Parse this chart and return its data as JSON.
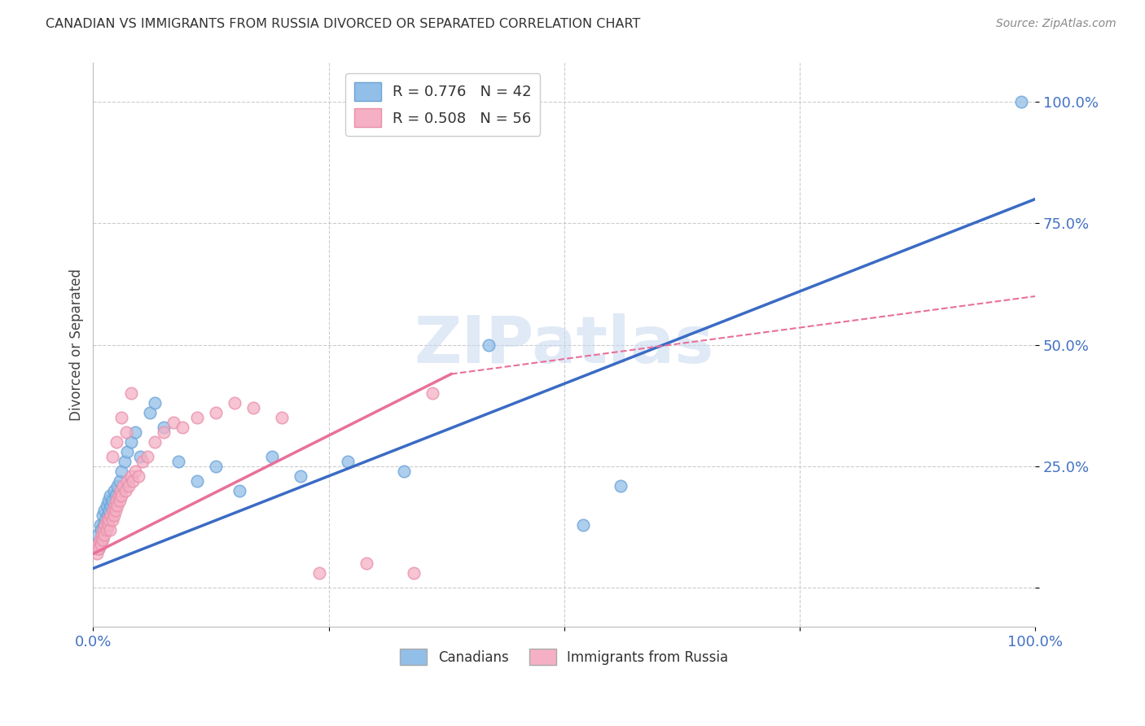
{
  "title": "CANADIAN VS IMMIGRANTS FROM RUSSIA DIVORCED OR SEPARATED CORRELATION CHART",
  "source": "Source: ZipAtlas.com",
  "ylabel": "Divorced or Separated",
  "xlim": [
    0,
    1
  ],
  "ylim": [
    -0.08,
    1.08
  ],
  "x_ticks": [
    0,
    0.25,
    0.5,
    0.75,
    1.0
  ],
  "x_tick_labels": [
    "0.0%",
    "",
    "",
    "",
    "100.0%"
  ],
  "y_ticks": [
    0.0,
    0.25,
    0.5,
    0.75,
    1.0
  ],
  "y_tick_labels": [
    "",
    "25.0%",
    "50.0%",
    "75.0%",
    "100.0%"
  ],
  "canadian_color": "#92BFE8",
  "canadian_edge_color": "#6CA3D8",
  "russian_color": "#F5B0C5",
  "russian_edge_color": "#E890AA",
  "r_canadian": 0.776,
  "n_canadian": 42,
  "r_russian": 0.508,
  "n_russian": 56,
  "watermark": "ZIPatlas",
  "background_color": "#ffffff",
  "grid_color": "#cccccc",
  "canadian_line": {
    "x0": 0.0,
    "y0": 0.04,
    "x1": 1.0,
    "y1": 0.8
  },
  "russian_line_solid": {
    "x0": 0.0,
    "y0": 0.07,
    "x1": 0.38,
    "y1": 0.44
  },
  "russian_line_dash": {
    "x0": 0.38,
    "y0": 0.44,
    "x1": 1.0,
    "y1": 0.6
  },
  "canadian_scatter_x": [
    0.003,
    0.005,
    0.006,
    0.007,
    0.008,
    0.009,
    0.01,
    0.011,
    0.012,
    0.013,
    0.014,
    0.015,
    0.016,
    0.017,
    0.018,
    0.019,
    0.02,
    0.022,
    0.024,
    0.026,
    0.028,
    0.03,
    0.033,
    0.036,
    0.04,
    0.045,
    0.05,
    0.06,
    0.065,
    0.075,
    0.09,
    0.11,
    0.13,
    0.155,
    0.19,
    0.22,
    0.27,
    0.33,
    0.42,
    0.52,
    0.56,
    0.985
  ],
  "canadian_scatter_y": [
    0.09,
    0.11,
    0.08,
    0.13,
    0.12,
    0.1,
    0.15,
    0.13,
    0.16,
    0.14,
    0.17,
    0.15,
    0.18,
    0.16,
    0.19,
    0.17,
    0.18,
    0.2,
    0.19,
    0.21,
    0.22,
    0.24,
    0.26,
    0.28,
    0.3,
    0.32,
    0.27,
    0.36,
    0.38,
    0.33,
    0.26,
    0.22,
    0.25,
    0.2,
    0.27,
    0.23,
    0.26,
    0.24,
    0.5,
    0.13,
    0.21,
    1.0
  ],
  "russian_scatter_x": [
    0.003,
    0.004,
    0.005,
    0.006,
    0.007,
    0.008,
    0.009,
    0.01,
    0.011,
    0.012,
    0.013,
    0.014,
    0.015,
    0.016,
    0.017,
    0.018,
    0.019,
    0.02,
    0.021,
    0.022,
    0.023,
    0.024,
    0.025,
    0.026,
    0.027,
    0.028,
    0.029,
    0.03,
    0.032,
    0.034,
    0.036,
    0.038,
    0.04,
    0.042,
    0.045,
    0.048,
    0.052,
    0.058,
    0.065,
    0.075,
    0.085,
    0.095,
    0.11,
    0.13,
    0.15,
    0.17,
    0.2,
    0.24,
    0.29,
    0.34,
    0.02,
    0.025,
    0.03,
    0.035,
    0.04,
    0.36
  ],
  "russian_scatter_y": [
    0.08,
    0.07,
    0.09,
    0.08,
    0.1,
    0.09,
    0.11,
    0.1,
    0.12,
    0.11,
    0.13,
    0.12,
    0.14,
    0.13,
    0.14,
    0.12,
    0.15,
    0.14,
    0.16,
    0.15,
    0.17,
    0.16,
    0.18,
    0.17,
    0.19,
    0.18,
    0.2,
    0.19,
    0.21,
    0.2,
    0.22,
    0.21,
    0.23,
    0.22,
    0.24,
    0.23,
    0.26,
    0.27,
    0.3,
    0.32,
    0.34,
    0.33,
    0.35,
    0.36,
    0.38,
    0.37,
    0.35,
    0.03,
    0.05,
    0.03,
    0.27,
    0.3,
    0.35,
    0.32,
    0.4,
    0.4
  ]
}
